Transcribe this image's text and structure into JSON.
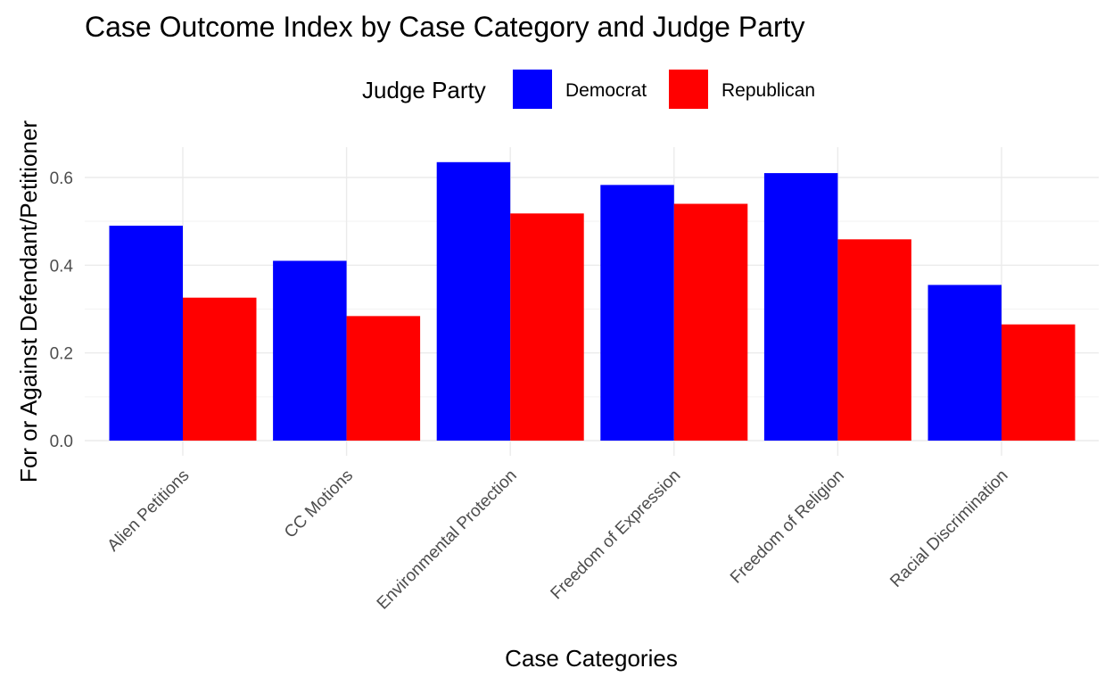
{
  "chart_data": {
    "type": "bar",
    "title": "Case Outcome Index by Case Category and Judge Party",
    "xlabel": "Case Categories",
    "ylabel": "For or Against Defendant/Petitioner",
    "legend_title": "Judge Party",
    "legend_position": "top",
    "grid": true,
    "ylim": [
      0,
      0.67
    ],
    "yticks": [
      0.0,
      0.2,
      0.4,
      0.6
    ],
    "ytick_labels": [
      "0.0",
      "0.2",
      "0.4",
      "0.6"
    ],
    "categories": [
      "Alien Petitions",
      "CC Motions",
      "Environmental Protection",
      "Freedom of Expression",
      "Freedom of Religion",
      "Racial Discrimination"
    ],
    "series": [
      {
        "name": "Democrat",
        "color": "#0000ff",
        "values": [
          0.49,
          0.41,
          0.635,
          0.583,
          0.61,
          0.355
        ]
      },
      {
        "name": "Republican",
        "color": "#ff0000",
        "values": [
          0.326,
          0.284,
          0.518,
          0.54,
          0.459,
          0.265
        ]
      }
    ]
  }
}
